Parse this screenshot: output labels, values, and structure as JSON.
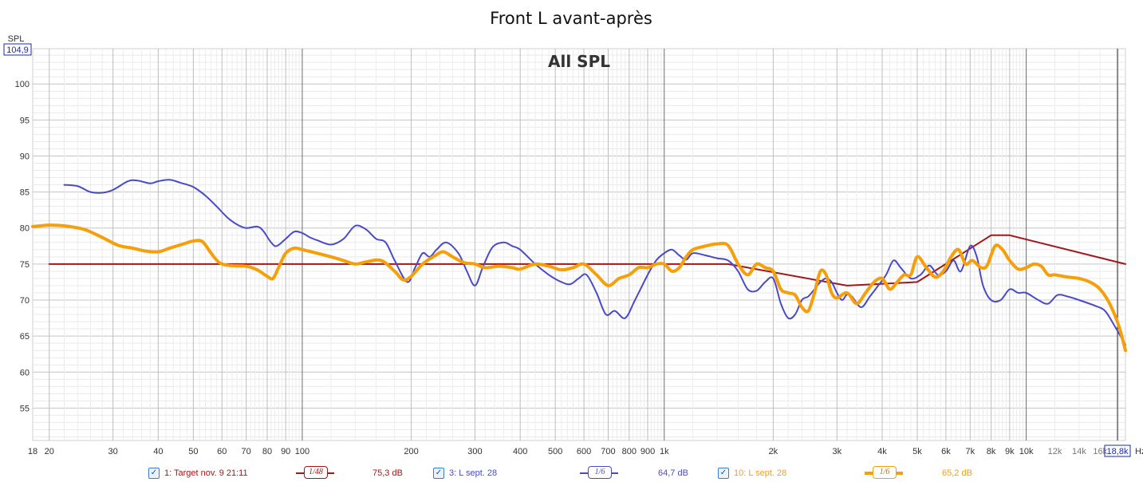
{
  "chart_data": {
    "type": "line",
    "title": "Front L avant-après",
    "subtitle": "All SPL",
    "ylabel": "SPL",
    "xunit": "Hz",
    "xscale": "log",
    "xlim": [
      18,
      18800
    ],
    "ylim": [
      50.5,
      104.9
    ],
    "y_max_marker": "104,9",
    "x_max_marker": "18,8k",
    "grid": true,
    "y_ticks": [
      55,
      60,
      65,
      70,
      75,
      80,
      85,
      90,
      95,
      100
    ],
    "x_ticks_major": [
      {
        "v": 18,
        "label": "18"
      },
      {
        "v": 20,
        "label": "20"
      },
      {
        "v": 30,
        "label": "30"
      },
      {
        "v": 40,
        "label": "40"
      },
      {
        "v": 50,
        "label": "50"
      },
      {
        "v": 60,
        "label": "60"
      },
      {
        "v": 70,
        "label": "70"
      },
      {
        "v": 80,
        "label": "80"
      },
      {
        "v": 90,
        "label": "90"
      },
      {
        "v": 100,
        "label": "100"
      },
      {
        "v": 200,
        "label": "200"
      },
      {
        "v": 300,
        "label": "300"
      },
      {
        "v": 400,
        "label": "400"
      },
      {
        "v": 500,
        "label": "500"
      },
      {
        "v": 600,
        "label": "600"
      },
      {
        "v": 700,
        "label": "700"
      },
      {
        "v": 800,
        "label": "800"
      },
      {
        "v": 900,
        "label": "900"
      },
      {
        "v": 1000,
        "label": "1k"
      },
      {
        "v": 2000,
        "label": "2k"
      },
      {
        "v": 3000,
        "label": "3k"
      },
      {
        "v": 4000,
        "label": "4k"
      },
      {
        "v": 5000,
        "label": "5k"
      },
      {
        "v": 6000,
        "label": "6k"
      },
      {
        "v": 7000,
        "label": "7k"
      },
      {
        "v": 8000,
        "label": "8k"
      },
      {
        "v": 9000,
        "label": "9k"
      },
      {
        "v": 10000,
        "label": "10k"
      },
      {
        "v": 12000,
        "label": "12k",
        "minor": true
      },
      {
        "v": 14000,
        "label": "14k",
        "minor": true
      },
      {
        "v": 16000,
        "label": "16k",
        "minor": true
      }
    ],
    "series": [
      {
        "name": "1: Target nov. 9 21:11",
        "color": "#a01818",
        "smoothing": "1/48",
        "level": "75,3 dB",
        "width": 2,
        "points": [
          [
            20,
            75
          ],
          [
            1500,
            75
          ],
          [
            3200,
            72
          ],
          [
            5000,
            72.5
          ],
          [
            8000,
            79
          ],
          [
            9000,
            79
          ],
          [
            18800,
            75
          ]
        ]
      },
      {
        "name": "3: L sept. 28",
        "color": "#4a4ac8",
        "smoothing": "1/6",
        "level": "64,7 dB",
        "width": 2,
        "points": [
          [
            22,
            86
          ],
          [
            24,
            85.8
          ],
          [
            26,
            85
          ],
          [
            28,
            84.9
          ],
          [
            30,
            85.3
          ],
          [
            33,
            86.5
          ],
          [
            35,
            86.6
          ],
          [
            38,
            86.2
          ],
          [
            40,
            86.5
          ],
          [
            43,
            86.7
          ],
          [
            46,
            86.3
          ],
          [
            50,
            85.7
          ],
          [
            54,
            84.5
          ],
          [
            58,
            83
          ],
          [
            62,
            81.5
          ],
          [
            66,
            80.5
          ],
          [
            70,
            80
          ],
          [
            75,
            80.2
          ],
          [
            78,
            79.6
          ],
          [
            82,
            78
          ],
          [
            85,
            77.5
          ],
          [
            90,
            78.5
          ],
          [
            95,
            79.5
          ],
          [
            100,
            79.3
          ],
          [
            105,
            78.7
          ],
          [
            110,
            78.3
          ],
          [
            120,
            77.7
          ],
          [
            130,
            78.5
          ],
          [
            140,
            80.3
          ],
          [
            150,
            79.8
          ],
          [
            160,
            78.5
          ],
          [
            170,
            78
          ],
          [
            180,
            75.5
          ],
          [
            195,
            72.5
          ],
          [
            205,
            74.5
          ],
          [
            215,
            76.5
          ],
          [
            225,
            76
          ],
          [
            235,
            77
          ],
          [
            250,
            78
          ],
          [
            270,
            76.5
          ],
          [
            285,
            74
          ],
          [
            300,
            72
          ],
          [
            315,
            74.5
          ],
          [
            335,
            77.3
          ],
          [
            360,
            78
          ],
          [
            380,
            77.5
          ],
          [
            400,
            77
          ],
          [
            440,
            75
          ],
          [
            480,
            73.5
          ],
          [
            520,
            72.5
          ],
          [
            550,
            72.2
          ],
          [
            580,
            73
          ],
          [
            610,
            73.5
          ],
          [
            650,
            71
          ],
          [
            690,
            68
          ],
          [
            730,
            68.5
          ],
          [
            780,
            67.5
          ],
          [
            830,
            70
          ],
          [
            900,
            73.5
          ],
          [
            950,
            75.5
          ],
          [
            1000,
            76.5
          ],
          [
            1050,
            77
          ],
          [
            1100,
            76.2
          ],
          [
            1150,
            75.6
          ],
          [
            1200,
            76.5
          ],
          [
            1300,
            76.2
          ],
          [
            1400,
            75.8
          ],
          [
            1500,
            75.5
          ],
          [
            1600,
            74
          ],
          [
            1700,
            71.5
          ],
          [
            1800,
            71.3
          ],
          [
            1900,
            72.5
          ],
          [
            2000,
            73
          ],
          [
            2100,
            69.5
          ],
          [
            2200,
            67.5
          ],
          [
            2300,
            68
          ],
          [
            2400,
            70
          ],
          [
            2500,
            70.5
          ],
          [
            2600,
            71.5
          ],
          [
            2700,
            72.5
          ],
          [
            2800,
            73
          ],
          [
            2900,
            72.5
          ],
          [
            3000,
            71
          ],
          [
            3100,
            70
          ],
          [
            3200,
            70.8
          ],
          [
            3300,
            70.5
          ],
          [
            3500,
            69
          ],
          [
            3700,
            70.5
          ],
          [
            3900,
            72
          ],
          [
            4100,
            73.5
          ],
          [
            4300,
            75.5
          ],
          [
            4500,
            74.5
          ],
          [
            4800,
            73
          ],
          [
            5100,
            73.5
          ],
          [
            5400,
            74.8
          ],
          [
            5700,
            73.5
          ],
          [
            6000,
            74
          ],
          [
            6300,
            75.5
          ],
          [
            6600,
            74
          ],
          [
            7000,
            77.5
          ],
          [
            7300,
            76
          ],
          [
            7600,
            72
          ],
          [
            8000,
            70
          ],
          [
            8500,
            70
          ],
          [
            9000,
            71.5
          ],
          [
            9500,
            71
          ],
          [
            10000,
            71
          ],
          [
            10800,
            70
          ],
          [
            11500,
            69.5
          ],
          [
            12200,
            70.7
          ],
          [
            13000,
            70.5
          ],
          [
            14000,
            70
          ],
          [
            15500,
            69.2
          ],
          [
            16500,
            68.5
          ],
          [
            17500,
            66.5
          ],
          [
            18800,
            63.8
          ]
        ]
      },
      {
        "name": "10: L sept. 28",
        "color": "#f59f0a",
        "smoothing": "1/6",
        "level": "65,2 dB",
        "width": 4,
        "points": [
          [
            18,
            80.2
          ],
          [
            20,
            80.4
          ],
          [
            22,
            80.3
          ],
          [
            25,
            79.8
          ],
          [
            28,
            78.7
          ],
          [
            31,
            77.6
          ],
          [
            34,
            77.2
          ],
          [
            37,
            76.8
          ],
          [
            40,
            76.7
          ],
          [
            43,
            77.2
          ],
          [
            47,
            77.8
          ],
          [
            50,
            78.2
          ],
          [
            53,
            78.1
          ],
          [
            56,
            76.5
          ],
          [
            59,
            75.2
          ],
          [
            63,
            74.8
          ],
          [
            70,
            74.7
          ],
          [
            75,
            74.2
          ],
          [
            80,
            73.3
          ],
          [
            83,
            73
          ],
          [
            86,
            74.5
          ],
          [
            90,
            76.5
          ],
          [
            95,
            77.2
          ],
          [
            100,
            77
          ],
          [
            110,
            76.5
          ],
          [
            120,
            76
          ],
          [
            130,
            75.5
          ],
          [
            140,
            75
          ],
          [
            150,
            75.3
          ],
          [
            165,
            75.5
          ],
          [
            180,
            74
          ],
          [
            190,
            72.8
          ],
          [
            200,
            73.3
          ],
          [
            215,
            75
          ],
          [
            230,
            76
          ],
          [
            245,
            76.7
          ],
          [
            260,
            76
          ],
          [
            280,
            75.2
          ],
          [
            300,
            75
          ],
          [
            320,
            74.5
          ],
          [
            350,
            74.7
          ],
          [
            380,
            74.5
          ],
          [
            400,
            74.3
          ],
          [
            440,
            75
          ],
          [
            480,
            74.7
          ],
          [
            520,
            74.2
          ],
          [
            560,
            74.5
          ],
          [
            600,
            75
          ],
          [
            650,
            73.5
          ],
          [
            700,
            72
          ],
          [
            750,
            73
          ],
          [
            800,
            73.5
          ],
          [
            850,
            74.5
          ],
          [
            900,
            74.5
          ],
          [
            950,
            75
          ],
          [
            1000,
            75
          ],
          [
            1050,
            74
          ],
          [
            1100,
            74.5
          ],
          [
            1150,
            76
          ],
          [
            1200,
            77
          ],
          [
            1300,
            77.5
          ],
          [
            1400,
            77.8
          ],
          [
            1500,
            77.6
          ],
          [
            1600,
            75
          ],
          [
            1700,
            73.5
          ],
          [
            1800,
            75
          ],
          [
            1900,
            74.5
          ],
          [
            2000,
            74
          ],
          [
            2100,
            71.5
          ],
          [
            2200,
            71
          ],
          [
            2300,
            70.7
          ],
          [
            2400,
            69
          ],
          [
            2500,
            68.5
          ],
          [
            2600,
            71
          ],
          [
            2700,
            74
          ],
          [
            2800,
            73.5
          ],
          [
            2900,
            71
          ],
          [
            3000,
            70.3
          ],
          [
            3200,
            71
          ],
          [
            3400,
            69.5
          ],
          [
            3600,
            71
          ],
          [
            3800,
            72.5
          ],
          [
            4000,
            73
          ],
          [
            4200,
            71.5
          ],
          [
            4400,
            72.5
          ],
          [
            4600,
            73.5
          ],
          [
            4800,
            73.5
          ],
          [
            5000,
            76
          ],
          [
            5300,
            74.5
          ],
          [
            5600,
            73.2
          ],
          [
            5900,
            74
          ],
          [
            6200,
            76
          ],
          [
            6500,
            77
          ],
          [
            6800,
            75
          ],
          [
            7100,
            75.5
          ],
          [
            7500,
            74.5
          ],
          [
            7800,
            74.8
          ],
          [
            8200,
            77.5
          ],
          [
            8600,
            77
          ],
          [
            9000,
            75.5
          ],
          [
            9500,
            74.3
          ],
          [
            10000,
            74.5
          ],
          [
            10500,
            75
          ],
          [
            11000,
            74.7
          ],
          [
            11500,
            73.5
          ],
          [
            12000,
            73.5
          ],
          [
            13000,
            73.2
          ],
          [
            14000,
            73
          ],
          [
            15000,
            72.5
          ],
          [
            16000,
            71.5
          ],
          [
            17000,
            69.5
          ],
          [
            18000,
            66.5
          ],
          [
            18800,
            63
          ]
        ]
      }
    ]
  }
}
